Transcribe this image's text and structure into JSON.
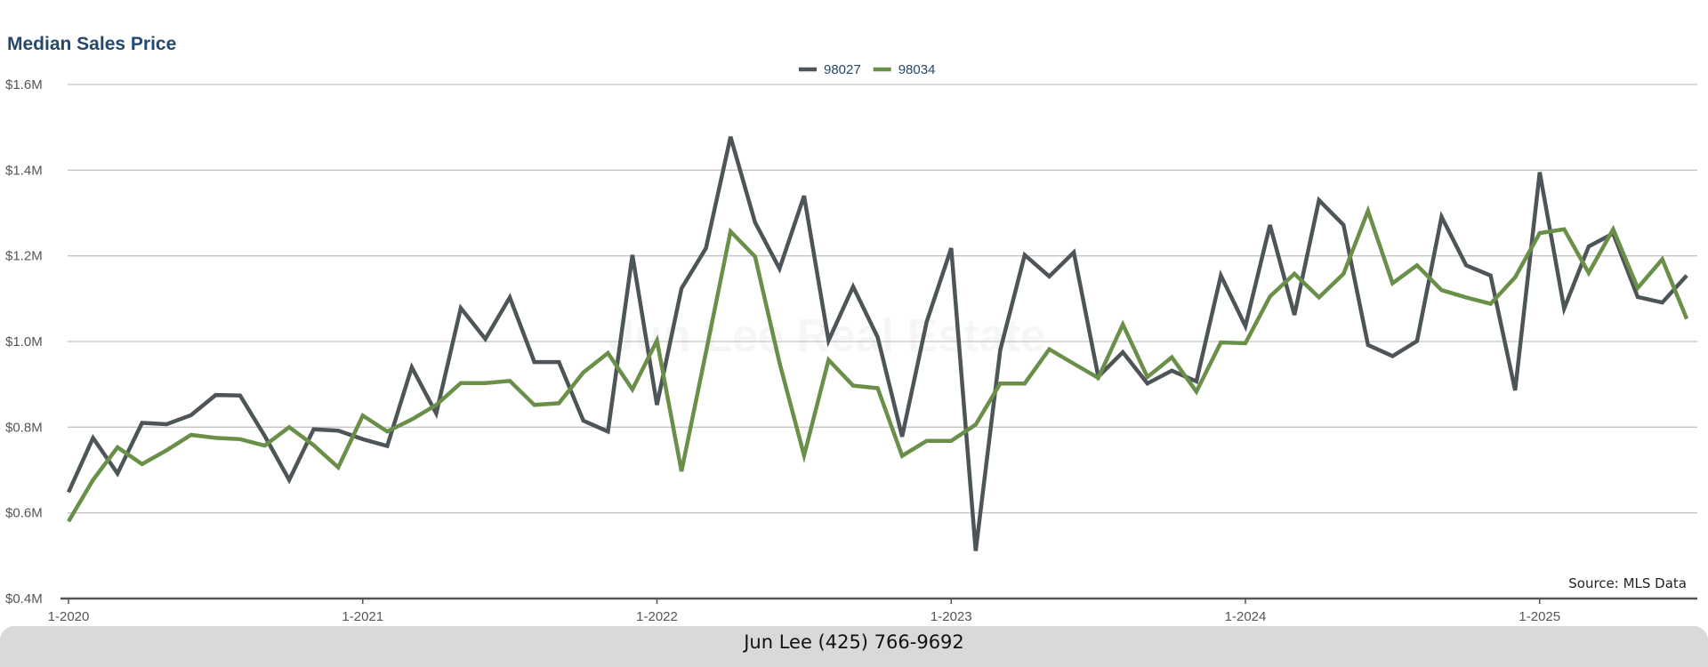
{
  "title": "Median Sales Price",
  "watermark": "Jun Lee Real Estate",
  "source": "Source: MLS Data",
  "footer": "Jun Lee (425) 766-9692",
  "chart_data": {
    "type": "line",
    "title": "Median Sales Price",
    "xlabel": "",
    "ylabel": "",
    "y_tick_labels": [
      "$0.4M",
      "$0.6M",
      "$0.8M",
      "$1.0M",
      "$1.2M",
      "$1.4M",
      "$1.6M"
    ],
    "y_ticks": [
      0.4,
      0.6,
      0.8,
      1.0,
      1.2,
      1.4,
      1.6
    ],
    "ylim": [
      0.4,
      1.6
    ],
    "x_tick_labels": [
      "1-2020",
      "1-2021",
      "1-2022",
      "1-2023",
      "1-2024",
      "1-2025"
    ],
    "x_ticks": [
      "2020-01",
      "2021-01",
      "2022-01",
      "2023-01",
      "2024-01",
      "2025-01"
    ],
    "x": [
      "2020-01",
      "2020-02",
      "2020-03",
      "2020-04",
      "2020-05",
      "2020-06",
      "2020-07",
      "2020-08",
      "2020-09",
      "2020-10",
      "2020-11",
      "2020-12",
      "2021-01",
      "2021-02",
      "2021-03",
      "2021-04",
      "2021-05",
      "2021-06",
      "2021-07",
      "2021-08",
      "2021-09",
      "2021-10",
      "2021-11",
      "2021-12",
      "2022-01",
      "2022-02",
      "2022-03",
      "2022-04",
      "2022-05",
      "2022-06",
      "2022-07",
      "2022-08",
      "2022-09",
      "2022-10",
      "2022-11",
      "2022-12",
      "2023-01",
      "2023-02",
      "2023-03",
      "2023-04",
      "2023-05",
      "2023-06",
      "2023-07",
      "2023-08",
      "2023-09",
      "2023-10",
      "2023-11",
      "2023-12",
      "2024-01",
      "2024-02",
      "2024-03",
      "2024-04",
      "2024-05",
      "2024-06",
      "2024-07",
      "2024-08",
      "2024-09",
      "2024-10",
      "2024-11",
      "2024-12",
      "2025-01",
      "2025-02",
      "2025-03",
      "2025-04",
      "2025-05",
      "2025-06",
      "2025-07"
    ],
    "series": [
      {
        "name": "98027",
        "color": "#4d5558",
        "values": [
          0.648,
          0.775,
          0.692,
          0.81,
          0.807,
          0.828,
          0.875,
          0.874,
          0.78,
          0.677,
          0.795,
          0.792,
          0.772,
          0.756,
          0.94,
          0.832,
          1.078,
          1.006,
          1.103,
          0.952,
          0.952,
          0.815,
          0.79,
          1.202,
          0.852,
          1.124,
          1.218,
          1.478,
          1.278,
          1.17,
          1.34,
          1.002,
          1.128,
          1.01,
          0.778,
          1.046,
          1.218,
          0.511,
          0.98,
          1.202,
          1.152,
          1.208,
          0.918,
          0.975,
          0.902,
          0.932,
          0.907,
          1.154,
          1.036,
          1.272,
          1.062,
          1.33,
          1.272,
          0.992,
          0.966,
          1.001,
          1.291,
          1.178,
          1.154,
          0.886,
          1.395,
          1.077,
          1.222,
          1.252,
          1.104,
          1.091,
          1.154
        ]
      },
      {
        "name": "98034",
        "color": "#6a8f48",
        "values": [
          0.58,
          0.677,
          0.753,
          0.714,
          0.746,
          0.782,
          0.775,
          0.772,
          0.757,
          0.8,
          0.758,
          0.706,
          0.827,
          0.79,
          0.818,
          0.852,
          0.903,
          0.903,
          0.908,
          0.852,
          0.856,
          0.928,
          0.973,
          0.888,
          1.002,
          0.697,
          0.975,
          1.257,
          1.198,
          0.95,
          0.734,
          0.957,
          0.897,
          0.891,
          0.733,
          0.768,
          0.768,
          0.806,
          0.902,
          0.902,
          0.982,
          0.948,
          0.915,
          1.04,
          0.917,
          0.963,
          0.883,
          0.998,
          0.996,
          1.105,
          1.158,
          1.103,
          1.158,
          1.305,
          1.136,
          1.178,
          1.12,
          1.103,
          1.088,
          1.15,
          1.253,
          1.262,
          1.16,
          1.262,
          1.125,
          1.192,
          1.053
        ]
      }
    ],
    "legend": {
      "position": "top-center"
    },
    "grid": true
  }
}
